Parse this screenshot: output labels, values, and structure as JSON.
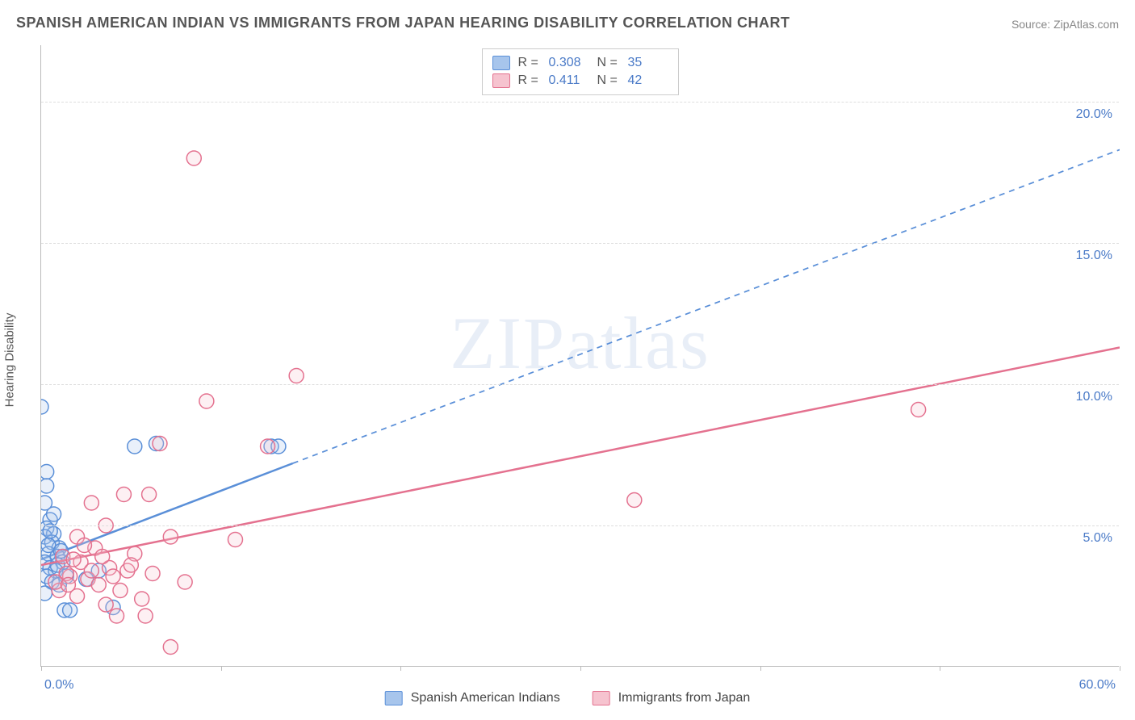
{
  "title": "SPANISH AMERICAN INDIAN VS IMMIGRANTS FROM JAPAN HEARING DISABILITY CORRELATION CHART",
  "source": "Source: ZipAtlas.com",
  "watermark": "ZIPatlas",
  "ylabel": "Hearing Disability",
  "chart": {
    "type": "scatter",
    "xlim": [
      0,
      60
    ],
    "ylim": [
      0,
      22
    ],
    "x_tick_positions": [
      0,
      10,
      20,
      30,
      40,
      50,
      60
    ],
    "x_tick_labels": [
      "0.0%",
      "",
      "",
      "",
      "",
      "",
      "60.0%"
    ],
    "y_gridlines": [
      5,
      10,
      15,
      20
    ],
    "y_tick_labels": [
      "5.0%",
      "10.0%",
      "15.0%",
      "20.0%"
    ],
    "grid_color": "#dddddd",
    "axis_color": "#bbbbbb",
    "background_color": "#ffffff",
    "tick_label_color": "#4a7ac7",
    "marker_radius": 9,
    "marker_stroke_width": 1.5,
    "marker_fill_opacity": 0.25,
    "trend_line_width": 2.5
  },
  "series": [
    {
      "id": "spanish_american_indians",
      "label": "Spanish American Indians",
      "fill_color": "#a7c5ec",
      "stroke_color": "#5a8fd8",
      "r_value": "0.308",
      "n_value": "35",
      "trend": {
        "x1": 0,
        "y1": 3.8,
        "x2_solid": 14,
        "y2_solid": 7.2,
        "x2_dash": 60,
        "y2_dash": 18.3
      },
      "points": [
        [
          0.0,
          9.2
        ],
        [
          0.3,
          6.9
        ],
        [
          0.3,
          6.4
        ],
        [
          0.2,
          5.8
        ],
        [
          0.5,
          5.2
        ],
        [
          0.3,
          4.9
        ],
        [
          0.7,
          4.7
        ],
        [
          0.2,
          4.6
        ],
        [
          0.6,
          4.4
        ],
        [
          1.0,
          4.2
        ],
        [
          0.4,
          4.0
        ],
        [
          0.9,
          3.9
        ],
        [
          0.2,
          3.7
        ],
        [
          1.2,
          3.7
        ],
        [
          0.5,
          3.5
        ],
        [
          0.8,
          3.4
        ],
        [
          0.3,
          3.2
        ],
        [
          1.4,
          3.2
        ],
        [
          0.6,
          3.0
        ],
        [
          1.0,
          2.9
        ],
        [
          0.2,
          2.6
        ],
        [
          1.3,
          2.0
        ],
        [
          1.6,
          2.0
        ],
        [
          2.5,
          3.1
        ],
        [
          3.2,
          3.4
        ],
        [
          4.0,
          2.1
        ],
        [
          5.2,
          7.8
        ],
        [
          6.4,
          7.9
        ],
        [
          12.8,
          7.8
        ],
        [
          13.2,
          7.8
        ],
        [
          0.4,
          4.3
        ],
        [
          0.9,
          3.6
        ],
        [
          0.5,
          4.8
        ],
        [
          0.7,
          5.4
        ],
        [
          1.1,
          4.1
        ]
      ]
    },
    {
      "id": "immigrants_from_japan",
      "label": "Immigrants from Japan",
      "fill_color": "#f6c3cf",
      "stroke_color": "#e4718f",
      "r_value": "0.411",
      "n_value": "42",
      "trend": {
        "x1": 0,
        "y1": 3.6,
        "x2_solid": 60,
        "y2_solid": 11.3,
        "x2_dash": 60,
        "y2_dash": 11.3
      },
      "points": [
        [
          8.5,
          18.0
        ],
        [
          14.2,
          10.3
        ],
        [
          9.2,
          9.4
        ],
        [
          12.6,
          7.8
        ],
        [
          6.6,
          7.9
        ],
        [
          33.0,
          5.9
        ],
        [
          48.8,
          9.1
        ],
        [
          4.6,
          6.1
        ],
        [
          6.0,
          6.1
        ],
        [
          2.8,
          5.8
        ],
        [
          3.6,
          5.0
        ],
        [
          7.2,
          4.6
        ],
        [
          10.8,
          4.5
        ],
        [
          2.0,
          4.6
        ],
        [
          3.0,
          4.2
        ],
        [
          5.2,
          4.0
        ],
        [
          1.2,
          3.9
        ],
        [
          2.2,
          3.7
        ],
        [
          3.8,
          3.5
        ],
        [
          4.8,
          3.4
        ],
        [
          6.2,
          3.3
        ],
        [
          1.6,
          3.2
        ],
        [
          2.6,
          3.1
        ],
        [
          8.0,
          3.0
        ],
        [
          3.2,
          2.9
        ],
        [
          4.4,
          2.7
        ],
        [
          1.0,
          2.7
        ],
        [
          2.0,
          2.5
        ],
        [
          5.6,
          2.4
        ],
        [
          3.6,
          2.2
        ],
        [
          5.8,
          1.8
        ],
        [
          4.2,
          1.8
        ],
        [
          7.2,
          0.7
        ],
        [
          1.8,
          3.8
        ],
        [
          2.4,
          4.3
        ],
        [
          3.4,
          3.9
        ],
        [
          4.0,
          3.2
        ],
        [
          5.0,
          3.6
        ],
        [
          1.4,
          3.3
        ],
        [
          2.8,
          3.4
        ],
        [
          0.8,
          3.0
        ],
        [
          1.5,
          2.9
        ]
      ]
    }
  ],
  "stats_labels": {
    "r": "R =",
    "n": "N ="
  }
}
